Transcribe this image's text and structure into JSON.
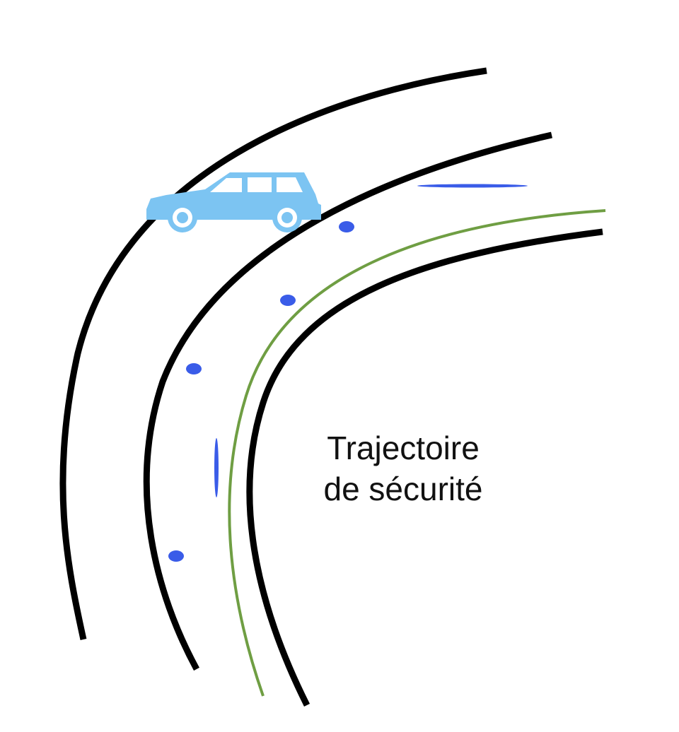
{
  "label": {
    "line1": "Trajectoire",
    "line2": "de sécurité"
  },
  "icons": {
    "vehicle": "station-wagon-car-icon"
  },
  "colors": {
    "road_edge": "#000000",
    "trajectory": "#6f9e43",
    "markers": "#3a5ce8",
    "car": "#7cc4f2",
    "car_window": "#ffffff",
    "background": "#ffffff"
  }
}
